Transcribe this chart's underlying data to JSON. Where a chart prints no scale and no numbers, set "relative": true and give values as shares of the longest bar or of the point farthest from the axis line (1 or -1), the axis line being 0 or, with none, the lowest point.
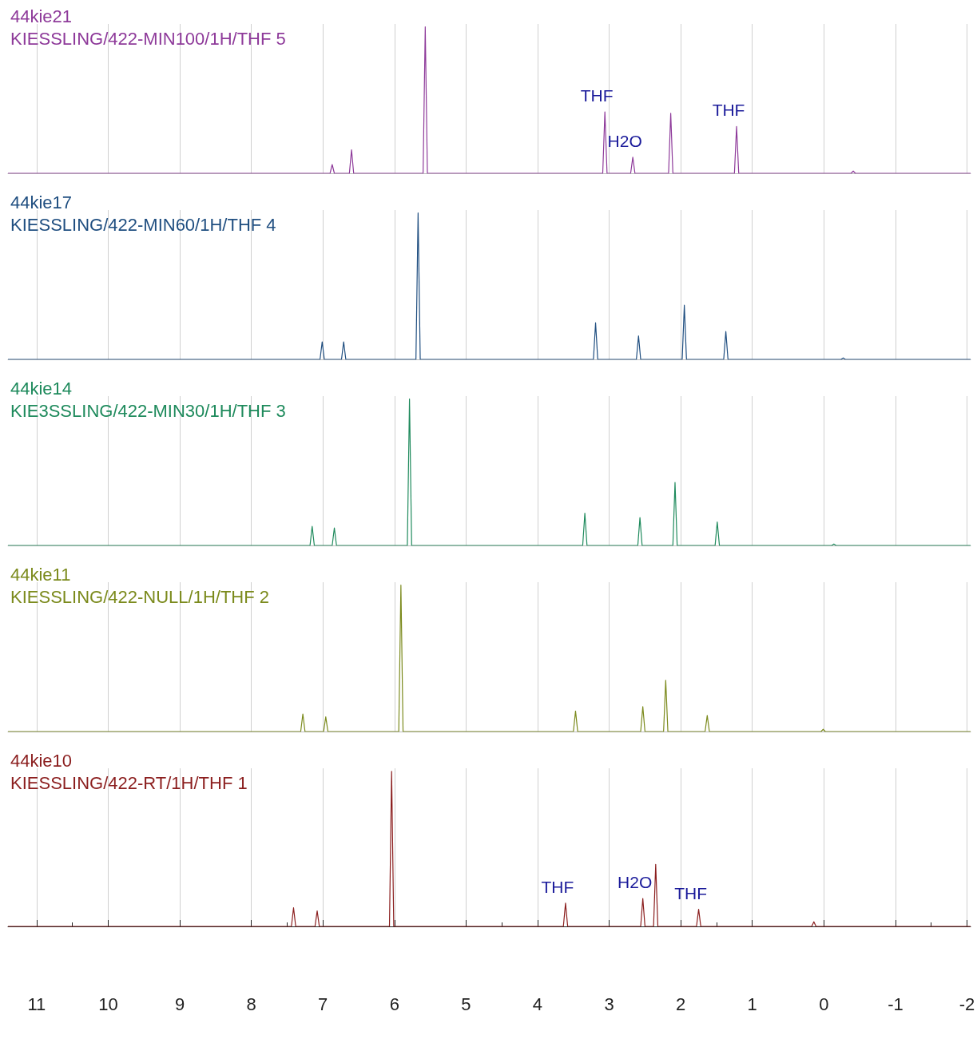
{
  "chart_data": [
    {
      "type": "line",
      "title": "44kie21",
      "subtitle": "KIESSLING/422-MIN100/1H/THF 5",
      "relative": true,
      "marker": "none",
      "grid": "x",
      "tick_labels": false,
      "xlim": [
        11.4,
        -2.05
      ],
      "xticks": [
        11,
        10,
        9,
        8,
        7,
        6,
        5,
        4,
        3,
        2,
        1,
        0,
        -1,
        -2
      ],
      "series": [
        {
          "color": "#8e3a9a",
          "x": [
            11.4,
            6.9,
            6.87,
            6.84,
            6.63,
            6.6,
            6.57,
            5.6,
            5.57,
            5.54,
            3.09,
            3.06,
            3.03,
            2.7,
            2.67,
            2.64,
            2.17,
            2.14,
            2.11,
            1.25,
            1.22,
            1.19,
            -0.38,
            -0.41,
            -0.44,
            -2.05
          ],
          "values": [
            0,
            0,
            0.06,
            0,
            0,
            0.16,
            0,
            0,
            1,
            0,
            0,
            0.42,
            0,
            0,
            0.11,
            0,
            0,
            0.41,
            0,
            0,
            0.32,
            0,
            0,
            0.015,
            0,
            0
          ]
        }
      ],
      "annotations": [
        {
          "text": "THF",
          "x": 3.06,
          "y": 0.42
        },
        {
          "text": "H2O",
          "x": 2.67,
          "y": 0.11
        },
        {
          "text": "THF",
          "x": 1.22,
          "y": 0.32
        }
      ]
    },
    {
      "type": "line",
      "title": "44kie17",
      "subtitle": "KIESSLING/422-MIN60/1H/THF 4",
      "relative": true,
      "marker": "none",
      "grid": "x",
      "tick_labels": false,
      "xlim": [
        11.4,
        -2.05
      ],
      "xticks": [
        11,
        10,
        9,
        8,
        7,
        6,
        5,
        4,
        3,
        2,
        1,
        0,
        -1,
        -2
      ],
      "series": [
        {
          "color": "#1f4e80",
          "x": [
            11.4,
            7.04,
            7.01,
            6.98,
            6.74,
            6.71,
            6.68,
            5.7,
            5.67,
            5.64,
            3.22,
            3.19,
            3.16,
            2.62,
            2.59,
            2.56,
            1.98,
            1.95,
            1.92,
            1.4,
            1.37,
            1.34,
            -0.24,
            -0.27,
            -0.3,
            -2.05
          ],
          "values": [
            0,
            0,
            0.12,
            0,
            0,
            0.12,
            0,
            0,
            1,
            0,
            0,
            0.25,
            0,
            0,
            0.16,
            0,
            0,
            0.37,
            0,
            0,
            0.19,
            0,
            0,
            0.01,
            0,
            0
          ]
        }
      ]
    },
    {
      "type": "line",
      "title": "44kie14",
      "subtitle": "KIE3SSLING/422-MIN30/1H/THF 3",
      "relative": true,
      "marker": "none",
      "grid": "x",
      "tick_labels": false,
      "xlim": [
        11.4,
        -2.05
      ],
      "xticks": [
        11,
        10,
        9,
        8,
        7,
        6,
        5,
        4,
        3,
        2,
        1,
        0,
        -1,
        -2
      ],
      "series": [
        {
          "color": "#1e8a5c",
          "x": [
            11.4,
            7.18,
            7.15,
            7.12,
            6.87,
            6.84,
            6.81,
            5.82,
            5.79,
            5.76,
            3.37,
            3.34,
            3.31,
            2.6,
            2.57,
            2.54,
            2.11,
            2.08,
            2.05,
            1.52,
            1.49,
            1.46,
            -0.11,
            -0.14,
            -0.17,
            -2.05
          ],
          "values": [
            0,
            0,
            0.13,
            0,
            0,
            0.12,
            0,
            0,
            1,
            0,
            0,
            0.22,
            0,
            0,
            0.19,
            0,
            0,
            0.43,
            0,
            0,
            0.16,
            0,
            0,
            0.01,
            0,
            0
          ]
        }
      ]
    },
    {
      "type": "line",
      "title": "44kie11",
      "subtitle": "KIESSLING/422-NULL/1H/THF 2",
      "relative": true,
      "marker": "none",
      "grid": "x",
      "tick_labels": false,
      "xlim": [
        11.4,
        -2.05
      ],
      "xticks": [
        11,
        10,
        9,
        8,
        7,
        6,
        5,
        4,
        3,
        2,
        1,
        0,
        -1,
        -2
      ],
      "series": [
        {
          "color": "#7b8a1c",
          "x": [
            11.4,
            7.31,
            7.28,
            7.25,
            6.99,
            6.96,
            6.93,
            5.94,
            5.91,
            5.88,
            3.5,
            3.47,
            3.44,
            2.56,
            2.53,
            2.5,
            2.24,
            2.21,
            2.18,
            1.66,
            1.63,
            1.6,
            0.04,
            0.01,
            -0.02,
            -2.05
          ],
          "values": [
            0,
            0,
            0.12,
            0,
            0,
            0.1,
            0,
            0,
            1,
            0,
            0,
            0.14,
            0,
            0,
            0.17,
            0,
            0,
            0.35,
            0,
            0,
            0.11,
            0,
            0,
            0.015,
            0,
            0
          ]
        }
      ]
    },
    {
      "type": "line",
      "title": "44kie10",
      "subtitle": "KIESSLING/422-RT/1H/THF 1",
      "relative": true,
      "marker": "none",
      "grid": "x",
      "tick_labels": "x",
      "xlim": [
        11.4,
        -2.05
      ],
      "xticks": [
        11,
        10,
        9,
        8,
        7,
        6,
        5,
        4,
        3,
        2,
        1,
        0,
        -1,
        -2
      ],
      "series": [
        {
          "color": "#8b1e1e",
          "x": [
            11.4,
            7.44,
            7.41,
            7.38,
            7.11,
            7.08,
            7.05,
            6.07,
            6.04,
            6.01,
            3.64,
            3.61,
            3.58,
            2.56,
            2.53,
            2.5,
            2.38,
            2.35,
            2.32,
            1.78,
            1.75,
            1.72,
            0.17,
            0.14,
            0.11,
            -2.05
          ],
          "values": [
            0,
            0,
            0.12,
            0,
            0,
            0.1,
            0,
            0,
            1,
            0,
            0,
            0.15,
            0,
            0,
            0.18,
            0,
            0,
            0.4,
            0,
            0,
            0.11,
            0,
            0,
            0.03,
            0,
            0
          ]
        }
      ],
      "annotations": [
        {
          "text": "THF",
          "x": 3.61,
          "y": 0.15
        },
        {
          "text": "H2O",
          "x": 2.53,
          "y": 0.18
        },
        {
          "text": "THF",
          "x": 1.75,
          "y": 0.11
        }
      ]
    }
  ]
}
